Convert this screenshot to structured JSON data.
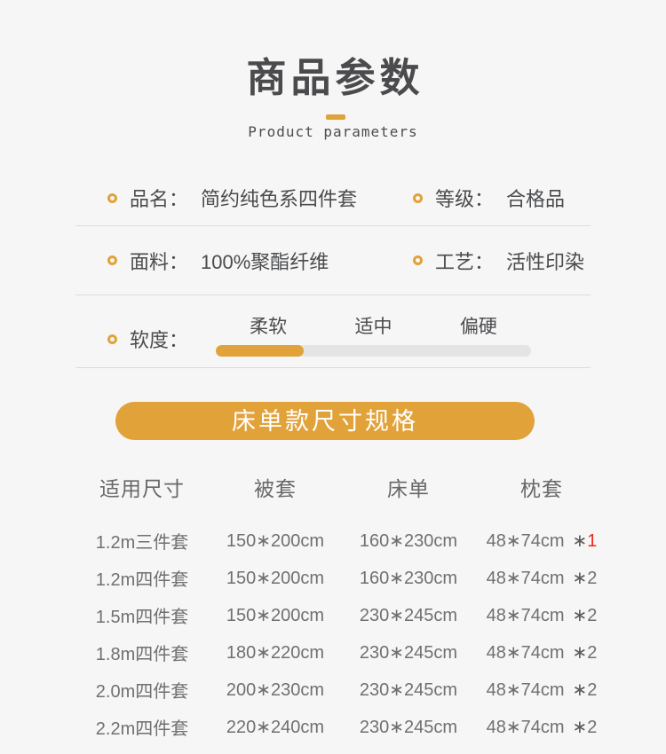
{
  "colors": {
    "accent": "#E1A239",
    "red": "#EF2820",
    "page_bg": "#F6F6F6"
  },
  "header": {
    "title": "商品参数",
    "subtitle": "Product parameters"
  },
  "params": {
    "rows": [
      {
        "left": {
          "label": "品名：",
          "value": "简约纯色系四件套"
        },
        "right": {
          "label": "等级：",
          "value": "合格品"
        }
      },
      {
        "left": {
          "label": "面料：",
          "value": "100%聚酯纤维"
        },
        "right": {
          "label": "工艺：",
          "value": "活性印染"
        }
      }
    ],
    "softness": {
      "label": "软度：",
      "levels": [
        "柔软",
        "适中",
        "偏硬"
      ],
      "fill_percent": 28
    }
  },
  "size_section": {
    "title": "床单款尺寸规格",
    "table": {
      "headers": [
        "适用尺寸",
        "被套",
        "床单",
        "枕套"
      ],
      "rows": [
        {
          "size": "1.2m三件套",
          "duvet": "150*200cm",
          "sheet": "160*230cm",
          "pillow": "48*74cm",
          "count": "*1",
          "count_red": true
        },
        {
          "size": "1.2m四件套",
          "duvet": "150*200cm",
          "sheet": "160*230cm",
          "pillow": "48*74cm",
          "count": "*2",
          "count_red": false
        },
        {
          "size": "1.5m四件套",
          "duvet": "150*200cm",
          "sheet": "230*245cm",
          "pillow": "48*74cm",
          "count": "*2",
          "count_red": false
        },
        {
          "size": "1.8m四件套",
          "duvet": "180*220cm",
          "sheet": "230*245cm",
          "pillow": "48*74cm",
          "count": "*2",
          "count_red": false
        },
        {
          "size": "2.0m四件套",
          "duvet": "200*230cm",
          "sheet": "230*245cm",
          "pillow": "48*74cm",
          "count": "*2",
          "count_red": false
        },
        {
          "size": "2.2m四件套",
          "duvet": "220*240cm",
          "sheet": "230*245cm",
          "pillow": "48*74cm",
          "count": "*2",
          "count_red": false
        }
      ]
    }
  }
}
